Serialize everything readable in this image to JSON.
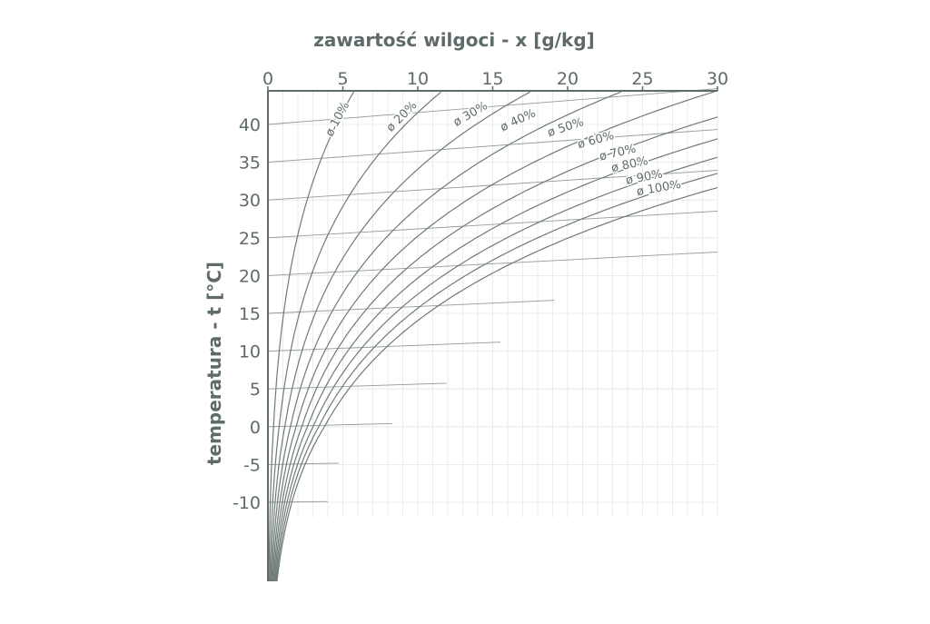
{
  "chart_data": {
    "type": "line",
    "title": "",
    "xlabel": "zawartość wilgoci - x [g/kg]",
    "ylabel": "temperatura - t [°C]",
    "xlim": [
      0,
      30
    ],
    "ylim": [
      -30,
      45
    ],
    "x_axis_position": "top",
    "x_ticks": [
      {
        "value": 0,
        "label": "0"
      },
      {
        "value": 5,
        "label": "5"
      },
      {
        "value": 10,
        "label": "10"
      },
      {
        "value": 15,
        "label": "15"
      },
      {
        "value": 20,
        "label": "20"
      },
      {
        "value": 25,
        "label": "25"
      },
      {
        "value": 30,
        "label": "30"
      }
    ],
    "y_ticks": [
      {
        "value": 40,
        "label": "40"
      },
      {
        "value": 35,
        "label": "35"
      },
      {
        "value": 30,
        "label": "30"
      },
      {
        "value": 25,
        "label": "25"
      },
      {
        "value": 20,
        "label": "20"
      },
      {
        "value": 15,
        "label": "15"
      },
      {
        "value": 10,
        "label": "10"
      },
      {
        "value": 5,
        "label": "5"
      },
      {
        "value": 0,
        "label": "0"
      },
      {
        "value": -5,
        "label": "-5"
      },
      {
        "value": -10,
        "label": "-10"
      }
    ],
    "isotherms_note_free": true,
    "series": [
      {
        "name": "ø 10%",
        "rh": 0.1
      },
      {
        "name": "ø 20%",
        "rh": 0.2
      },
      {
        "name": "ø 30%",
        "rh": 0.3
      },
      {
        "name": "ø 40%",
        "rh": 0.4
      },
      {
        "name": "ø 50%",
        "rh": 0.5
      },
      {
        "name": "ø 60%",
        "rh": 0.6
      },
      {
        "name": "ø 70%",
        "rh": 0.7
      },
      {
        "name": "ø 80%",
        "rh": 0.8
      },
      {
        "name": "ø 90%",
        "rh": 0.9
      },
      {
        "name": "ø 100%",
        "rh": 1.0
      }
    ],
    "grid": true,
    "colors": {
      "lines": "#6f7a79",
      "grid": "#e4e7e6",
      "text": "#5f6b6a",
      "axis": "#5f6b6a"
    }
  }
}
